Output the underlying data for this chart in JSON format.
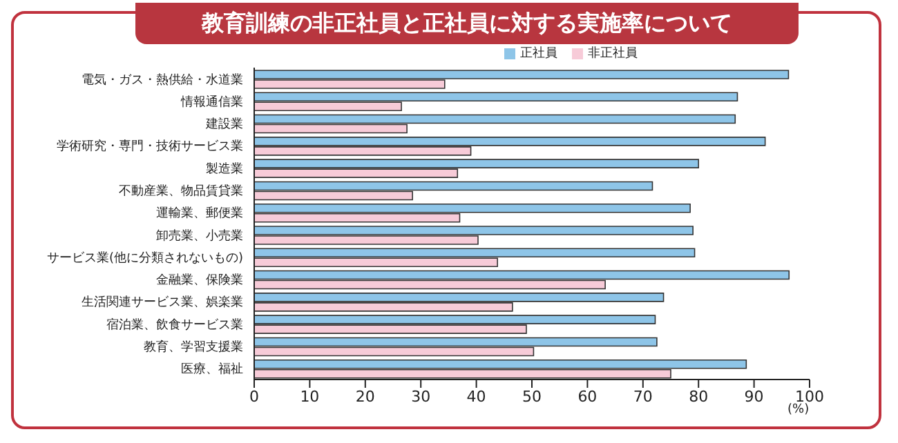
{
  "chart_data": {
    "type": "bar",
    "orientation": "horizontal",
    "title": "教育訓練の非正社員と正社員に対する実施率について",
    "xlabel": "(%)",
    "categories": [
      "電気・ガス・熱供給・水道業",
      "情報通信業",
      "建設業",
      "学術研究・専門・技術サービス業",
      "製造業",
      "不動産業、物品賃貸業",
      "運輸業、郵便業",
      "卸売業、小売業",
      "サービス業(他に分類されないもの)",
      "金融業、保険業",
      "生活関連サービス業、娯楽業",
      "宿泊業、飲食サービス業",
      "教育、学習支援業",
      "医療、福祉"
    ],
    "series": [
      {
        "name": "正社員",
        "color": "#8ec5e8",
        "values": [
          96.2,
          87,
          86.6,
          92,
          80,
          71.7,
          78.5,
          79,
          79.3,
          96.3,
          73.7,
          72.2,
          72.5,
          88.6
        ]
      },
      {
        "name": "非正社員",
        "color": "#f7cbd8",
        "values": [
          34.3,
          26.5,
          27.5,
          39,
          36.6,
          28.5,
          37,
          40.3,
          43.8,
          63.2,
          46.5,
          49,
          50.3,
          75
        ]
      }
    ],
    "xlim": [
      0,
      100
    ],
    "xticks": [
      0,
      10,
      20,
      30,
      40,
      50,
      60,
      70,
      80,
      90,
      100
    ],
    "grid": false,
    "legend": "top"
  }
}
